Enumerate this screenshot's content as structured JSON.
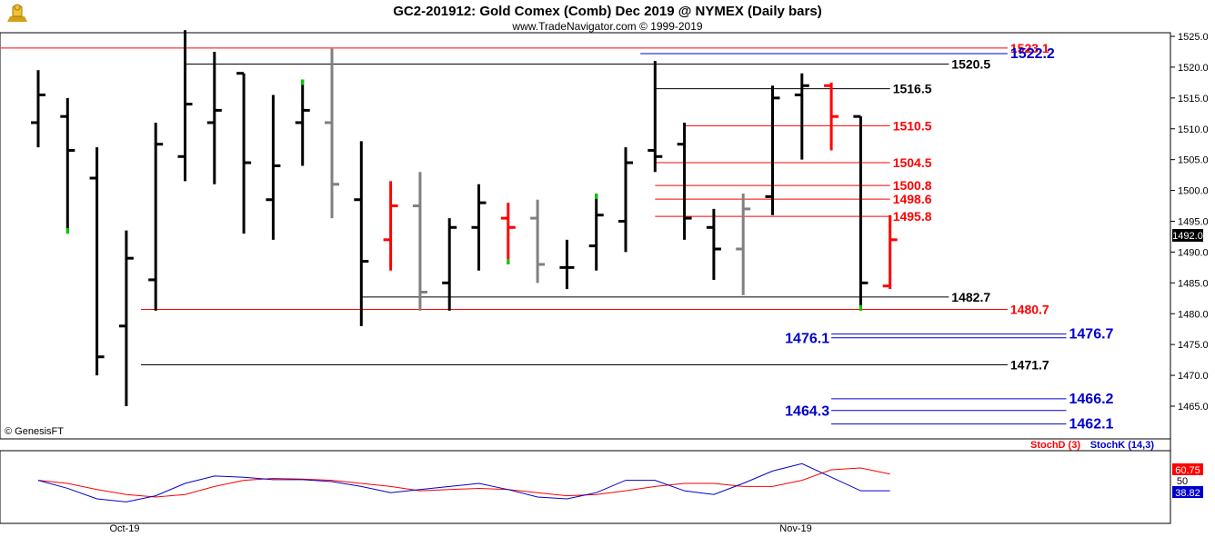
{
  "header": {
    "title": "GC2-201912:  Gold Comex (Comb) Dec 2019 @ NYMEX  (Daily bars)",
    "subtitle": "www.TradeNavigator.com © 1999-2019",
    "logo_icon": "trophy-icon"
  },
  "copyright": "© GenesisFT",
  "price_tag": "1492.0",
  "colors": {
    "up": "#000000",
    "neutral": "#808080",
    "down": "#ff0000",
    "accent": "#00cc00",
    "black_line": "#000000",
    "red_line": "#ff0000",
    "blue_line": "#0000cc",
    "stochD": "#ff0000",
    "stochK": "#0000cc"
  },
  "chart_data": [
    {
      "type": "ohlc",
      "title": "GC2-201912:  Gold Comex (Comb) Dec 2019 @ NYMEX  (Daily bars)",
      "ylim": [
        1460,
        1527
      ],
      "yticks": [
        "1525.0",
        "1520.0",
        "1515.0",
        "1510.0",
        "1505.0",
        "1500.0",
        "1495.0",
        "1490.0",
        "1485.0",
        "1480.0",
        "1475.0",
        "1470.0",
        "1465.0"
      ],
      "xlabels": [
        "Oct-19",
        "Nov-19"
      ],
      "bars": [
        {
          "i": 0,
          "o": 1511,
          "h": 1519.5,
          "l": 1507,
          "c": 1515.5,
          "col": "up"
        },
        {
          "i": 1,
          "o": 1512,
          "h": 1515,
          "l": 1493,
          "c": 1506.5,
          "col": "up",
          "mark": "g"
        },
        {
          "i": 2,
          "o": 1502,
          "h": 1507,
          "l": 1470,
          "c": 1473,
          "col": "up"
        },
        {
          "i": 3,
          "o": 1478,
          "h": 1493.5,
          "l": 1465,
          "c": 1489,
          "col": "up"
        },
        {
          "i": 4,
          "o": 1485.5,
          "h": 1511,
          "l": 1480.5,
          "c": 1507.5,
          "col": "up"
        },
        {
          "i": 5,
          "o": 1505.5,
          "h": 1526,
          "l": 1501.5,
          "c": 1514,
          "col": "up"
        },
        {
          "i": 6,
          "o": 1511,
          "h": 1522.5,
          "l": 1501,
          "c": 1513,
          "col": "up"
        },
        {
          "i": 7,
          "o": 1519,
          "h": 1519,
          "l": 1493,
          "c": 1504.5,
          "col": "up"
        },
        {
          "i": 8,
          "o": 1498.5,
          "h": 1515.5,
          "l": 1492,
          "c": 1504,
          "col": "up"
        },
        {
          "i": 9,
          "o": 1511,
          "h": 1518,
          "l": 1504,
          "c": 1513,
          "col": "up",
          "mark": "g"
        },
        {
          "i": 10,
          "o": 1511,
          "h": 1523,
          "l": 1495.5,
          "c": 1501,
          "col": "neutral"
        },
        {
          "i": 11,
          "o": 1498.5,
          "h": 1508,
          "l": 1478,
          "c": 1488.5,
          "col": "up"
        },
        {
          "i": 12,
          "o": 1492,
          "h": 1501.5,
          "l": 1487,
          "c": 1497.5,
          "col": "down"
        },
        {
          "i": 13,
          "o": 1497.5,
          "h": 1503,
          "l": 1480.5,
          "c": 1483.5,
          "col": "neutral"
        },
        {
          "i": 14,
          "o": 1485,
          "h": 1495.5,
          "l": 1480.5,
          "c": 1494,
          "col": "up"
        },
        {
          "i": 15,
          "o": 1494,
          "h": 1501,
          "l": 1487,
          "c": 1498,
          "col": "up"
        },
        {
          "i": 16,
          "o": 1495.5,
          "h": 1498,
          "l": 1488,
          "c": 1494,
          "col": "down",
          "mark": "g"
        },
        {
          "i": 17,
          "o": 1495.5,
          "h": 1498.5,
          "l": 1485,
          "c": 1488,
          "col": "neutral"
        },
        {
          "i": 18,
          "o": 1487.5,
          "h": 1492,
          "l": 1484,
          "c": 1487.5,
          "col": "up"
        },
        {
          "i": 19,
          "o": 1491,
          "h": 1499.5,
          "l": 1487,
          "c": 1496,
          "col": "up",
          "mark": "g"
        },
        {
          "i": 20,
          "o": 1495,
          "h": 1507,
          "l": 1490,
          "c": 1504.5,
          "col": "up"
        },
        {
          "i": 21,
          "o": 1506.5,
          "h": 1521,
          "l": 1503,
          "c": 1505.5,
          "col": "up"
        },
        {
          "i": 22,
          "o": 1507.5,
          "h": 1511,
          "l": 1492,
          "c": 1495.5,
          "col": "up"
        },
        {
          "i": 23,
          "o": 1494,
          "h": 1497,
          "l": 1485.5,
          "c": 1490.5,
          "col": "up"
        },
        {
          "i": 24,
          "o": 1490.5,
          "h": 1499.5,
          "l": 1483,
          "c": 1497,
          "col": "neutral"
        },
        {
          "i": 25,
          "o": 1499,
          "h": 1517,
          "l": 1496,
          "c": 1515,
          "col": "up"
        },
        {
          "i": 26,
          "o": 1515.5,
          "h": 1519,
          "l": 1505,
          "c": 1517,
          "col": "up"
        },
        {
          "i": 27,
          "o": 1517,
          "h": 1517.5,
          "l": 1506.5,
          "c": 1512,
          "col": "down"
        },
        {
          "i": 28,
          "o": 1512,
          "h": 1512,
          "l": 1480.5,
          "c": 1485,
          "col": "up",
          "mark": "g"
        },
        {
          "i": 29,
          "o": 1484.5,
          "h": 1496,
          "l": 1484,
          "c": 1492,
          "col": "down"
        }
      ],
      "levels": [
        {
          "v": 1523.1,
          "label": "1523.1",
          "color": "red",
          "x0": 0,
          "x1": 33
        },
        {
          "v": 1522.2,
          "label": "1522.2",
          "color": "blue",
          "x0": 20.5,
          "x1": 33,
          "big": true
        },
        {
          "v": 1520.5,
          "label": "1520.5",
          "color": "black",
          "x0": 5,
          "x1": 31
        },
        {
          "v": 1516.5,
          "label": "1516.5",
          "color": "black",
          "x0": 21,
          "x1": 29
        },
        {
          "v": 1510.5,
          "label": "1510.5",
          "color": "red",
          "x0": 22,
          "x1": 29
        },
        {
          "v": 1504.5,
          "label": "1504.5",
          "color": "red",
          "x0": 21,
          "x1": 29
        },
        {
          "v": 1500.8,
          "label": "1500.8",
          "color": "red",
          "x0": 21,
          "x1": 29
        },
        {
          "v": 1498.6,
          "label": "1498.6",
          "color": "red",
          "x0": 21,
          "x1": 29
        },
        {
          "v": 1495.8,
          "label": "1495.8",
          "color": "red",
          "x0": 21,
          "x1": 29
        },
        {
          "v": 1482.7,
          "label": "1482.7",
          "color": "black",
          "x0": 11,
          "x1": 31
        },
        {
          "v": 1480.7,
          "label": "1480.7",
          "color": "red",
          "x0": 3.5,
          "x1": 33
        },
        {
          "v": 1476.7,
          "label": "1476.7",
          "color": "blue",
          "x0": 27,
          "x1": 35,
          "big": true,
          "double": true
        },
        {
          "v": 1476.1,
          "label": "1476.1",
          "color": "blue",
          "x0": 27,
          "x1": 35,
          "big": true,
          "labelLeft": true
        },
        {
          "v": 1471.7,
          "label": "1471.7",
          "color": "black",
          "x0": 3.5,
          "x1": 33
        },
        {
          "v": 1466.2,
          "label": "1466.2",
          "color": "blue",
          "x0": 27,
          "x1": 35,
          "big": true
        },
        {
          "v": 1464.3,
          "label": "1464.3",
          "color": "blue",
          "x0": 27,
          "x1": 35,
          "big": true,
          "labelLeft": true
        },
        {
          "v": 1462.1,
          "label": "1462.1",
          "color": "blue",
          "x0": 27,
          "x1": 35,
          "big": true
        }
      ]
    },
    {
      "type": "line",
      "legend": [
        "StochD (3)",
        "StochK (14,3)"
      ],
      "ylim": [
        0,
        100
      ],
      "yticks": [
        "60.75",
        "50",
        "38.82"
      ],
      "series": [
        {
          "name": "StochD (3)",
          "x": [
            0,
            1,
            2,
            3,
            4,
            5,
            6,
            7,
            8,
            9,
            10,
            11,
            12,
            13,
            14,
            15,
            16,
            17,
            18,
            19,
            20,
            21,
            22,
            23,
            24,
            25,
            26,
            27,
            28,
            29
          ],
          "values": [
            55,
            50,
            40,
            32,
            28,
            32,
            45,
            55,
            58,
            57,
            55,
            50,
            45,
            38,
            40,
            42,
            40,
            35,
            30,
            32,
            38,
            45,
            50,
            50,
            45,
            45,
            55,
            72,
            75,
            65
          ]
        },
        {
          "name": "StochK (14,3)",
          "x": [
            0,
            1,
            2,
            3,
            4,
            5,
            6,
            7,
            8,
            9,
            10,
            11,
            12,
            13,
            14,
            15,
            16,
            17,
            18,
            19,
            20,
            21,
            22,
            23,
            24,
            25,
            26,
            27,
            28,
            29
          ],
          "values": [
            55,
            42,
            25,
            20,
            30,
            50,
            62,
            60,
            56,
            56,
            53,
            45,
            35,
            40,
            45,
            50,
            40,
            28,
            25,
            35,
            55,
            55,
            38,
            32,
            50,
            70,
            82,
            60,
            38,
            38
          ]
        }
      ]
    }
  ]
}
